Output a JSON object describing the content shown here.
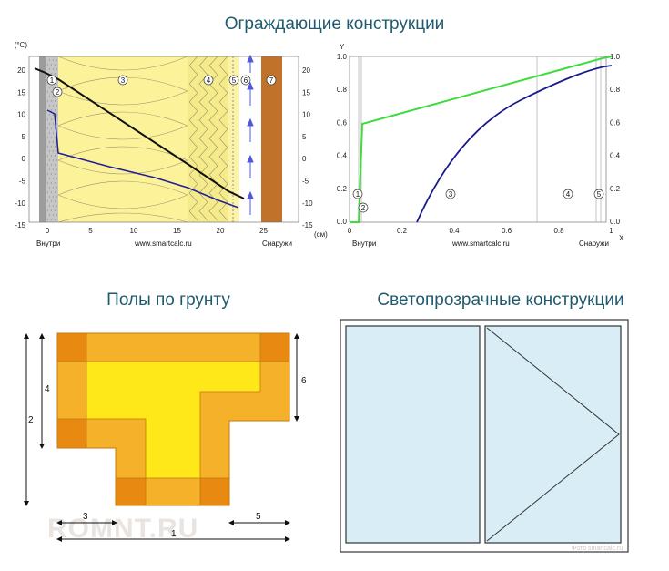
{
  "titles": {
    "walls": "Ограждающие конструкции",
    "floors": "Полы по грунту",
    "windows": "Светопрозрачные конструкции"
  },
  "wall_chart": {
    "unit_label": "(°C)",
    "x_unit_label": "(см)",
    "inside_label": "Внутри",
    "outside_label": "Снаружи",
    "site_label": "www.smartcalc.ru",
    "x_ticks": [
      "0",
      "5",
      "10",
      "15",
      "20",
      "25"
    ],
    "y_ticks_left": [
      "20",
      "15",
      "10",
      "5",
      "0",
      "-5",
      "-10",
      "-15"
    ],
    "y_ticks_right": [
      "20",
      "15",
      "10",
      "5",
      "0",
      "-5",
      "-10",
      "-15"
    ],
    "layer_numbers": [
      "1",
      "2",
      "3",
      "4",
      "5",
      "6",
      "7"
    ],
    "colors": {
      "plaster": "#a8a8a8",
      "insulation": "#fcf29a",
      "mineral_wool": "#f7ec8d",
      "air_gap": "#ffffff",
      "facing": "#c0712a",
      "temperature_line": "#1a1a1a",
      "dew_line": "#1f1f9a",
      "arrow": "#4a4acf"
    }
  },
  "humidity_chart": {
    "y_axis_label": "Y",
    "x_axis_label": "X",
    "inside_label": "Внутри",
    "outside_label": "Снаружи",
    "site_label": "www.smartcalc.ru",
    "x_ticks": [
      "0",
      "0.2",
      "0.4",
      "0.6",
      "0.8",
      "1"
    ],
    "y_ticks_left": [
      "1.0",
      "0.8",
      "0.6",
      "0.4",
      "0.2",
      "0.0"
    ],
    "y_ticks_right": [
      "1.0",
      "0.8",
      "0.6",
      "0.4",
      "0.2",
      "0.0"
    ],
    "layer_numbers": [
      "1",
      "2",
      "3",
      "4",
      "5"
    ],
    "colors": {
      "green_line": "#3bdc3b",
      "blue_line": "#1a1a8c"
    }
  },
  "floor_plan": {
    "dimensions": [
      "1",
      "2",
      "3",
      "4",
      "5",
      "6"
    ],
    "watermark": "ROMNT.RU",
    "colors": {
      "zone_outer": "#f5b12a",
      "zone_inner": "#ffe81a",
      "zone_corner": "#e88a12",
      "outline": "#c07a10"
    }
  },
  "window": {
    "watermark": "Фото smartcalc.ru",
    "colors": {
      "frame": "#444444",
      "glass": "#d8edf5",
      "background": "#ffffff"
    }
  }
}
